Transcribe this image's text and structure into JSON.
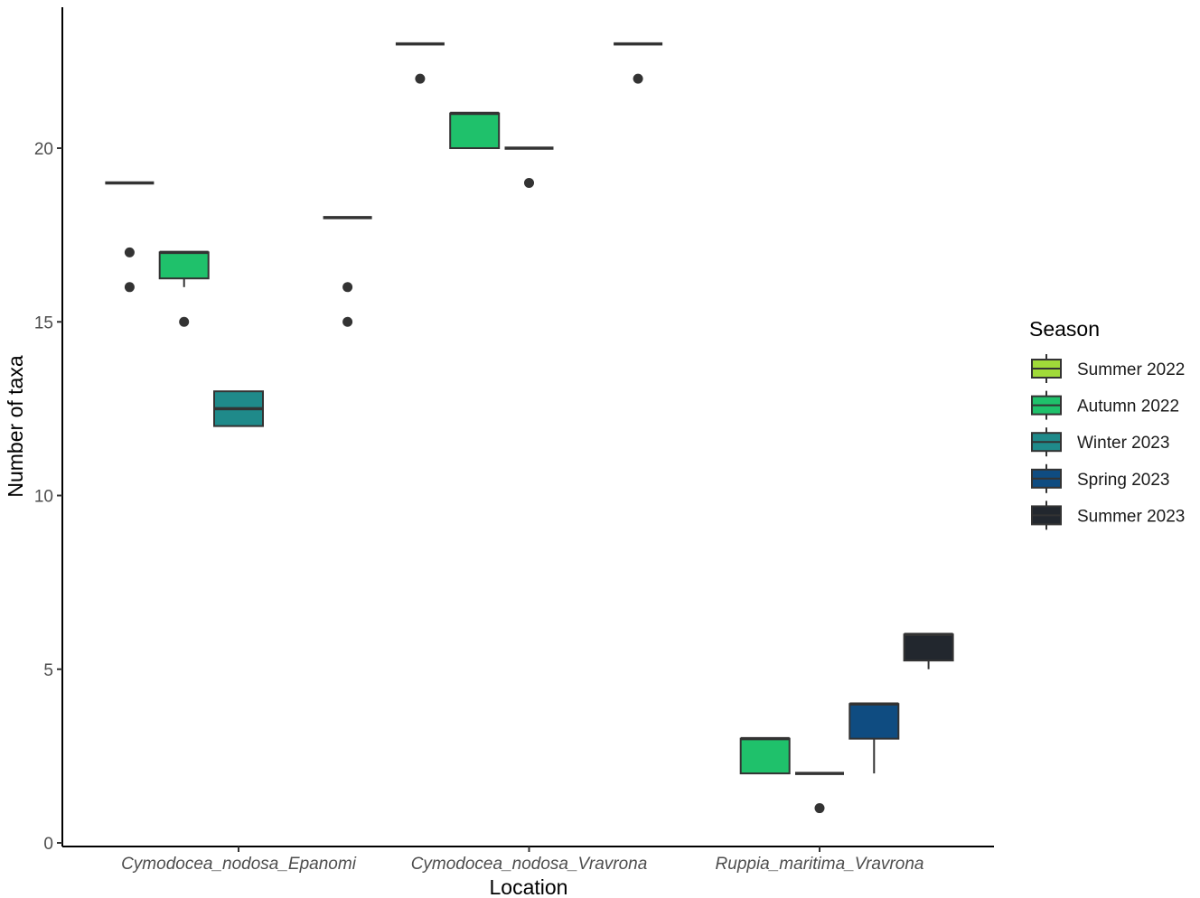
{
  "chart_data": {
    "type": "box",
    "title": "",
    "xlabel": "Location",
    "ylabel": "Number of taxa",
    "ylim": [
      0,
      23.5
    ],
    "yticks": [
      0,
      5,
      10,
      15,
      20
    ],
    "grid": false,
    "legend_position": "right",
    "legend_title": "Season",
    "categories": [
      "Cymodocea_nodosa_Epanomi",
      "Cymodocea_nodosa_Vravrona",
      "Ruppia_maritima_Vravrona"
    ],
    "series": [
      {
        "name": "Summer 2022",
        "color": "#a0da39",
        "boxes": [
          {
            "category": 0,
            "q1": 19,
            "median": 19,
            "q3": 19,
            "whisker_low": 19,
            "whisker_high": 19,
            "outliers": [
              17,
              16
            ]
          },
          {
            "category": 1,
            "q1": 23,
            "median": 23,
            "q3": 23,
            "whisker_low": 23,
            "whisker_high": 23,
            "outliers": [
              22
            ]
          }
        ]
      },
      {
        "name": "Autumn 2022",
        "color": "#1fc16b",
        "boxes": [
          {
            "category": 0,
            "q1": 16.25,
            "median": 17,
            "q3": 17,
            "whisker_low": 16,
            "whisker_high": 17,
            "outliers": [
              15
            ]
          },
          {
            "category": 1,
            "q1": 20,
            "median": 21,
            "q3": 21,
            "whisker_low": 20,
            "whisker_high": 21,
            "outliers": []
          },
          {
            "category": 2,
            "q1": 2,
            "median": 3,
            "q3": 3,
            "whisker_low": 2,
            "whisker_high": 3,
            "outliers": []
          }
        ]
      },
      {
        "name": "Winter 2023",
        "color": "#1f8a8a",
        "boxes": [
          {
            "category": 0,
            "q1": 12,
            "median": 12.5,
            "q3": 13,
            "whisker_low": 12,
            "whisker_high": 13,
            "outliers": []
          },
          {
            "category": 1,
            "q1": 20,
            "median": 20,
            "q3": 20,
            "whisker_low": 20,
            "whisker_high": 20,
            "outliers": [
              19
            ]
          },
          {
            "category": 2,
            "q1": 2,
            "median": 2,
            "q3": 2,
            "whisker_low": 2,
            "whisker_high": 2,
            "outliers": [
              1
            ]
          }
        ]
      },
      {
        "name": "Spring 2023",
        "color": "#0f4c81",
        "boxes": [
          {
            "category": 2,
            "q1": 3,
            "median": 4,
            "q3": 4,
            "whisker_low": 2,
            "whisker_high": 4,
            "outliers": []
          }
        ]
      },
      {
        "name": "Summer 2023",
        "color": "#22272e",
        "boxes": [
          {
            "category": 0,
            "q1": 18,
            "median": 18,
            "q3": 18,
            "whisker_low": 18,
            "whisker_high": 18,
            "outliers": [
              16,
              15
            ]
          },
          {
            "category": 1,
            "q1": 23,
            "median": 23,
            "q3": 23,
            "whisker_low": 23,
            "whisker_high": 23,
            "outliers": [
              22
            ]
          },
          {
            "category": 2,
            "q1": 5.25,
            "median": 6,
            "q3": 6,
            "whisker_low": 5,
            "whisker_high": 6,
            "outliers": []
          }
        ]
      }
    ]
  }
}
